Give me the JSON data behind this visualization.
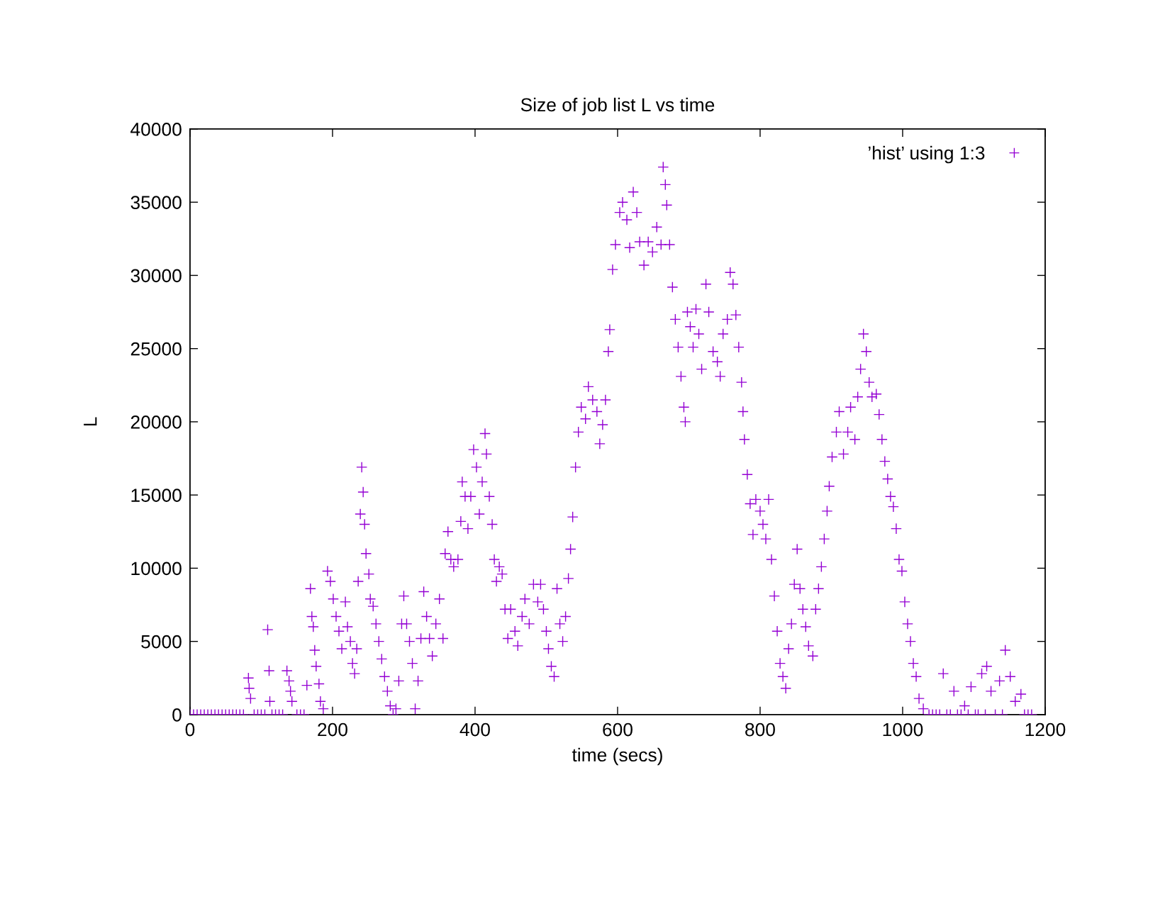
{
  "chart_data": {
    "type": "scatter",
    "title": "Size of job list L vs time",
    "xlabel": "time (secs)",
    "ylabel": "L",
    "xlim": [
      0,
      1200
    ],
    "ylim": [
      0,
      40000
    ],
    "xticks": [
      0,
      200,
      400,
      600,
      800,
      1000,
      1200
    ],
    "yticks": [
      0,
      5000,
      10000,
      15000,
      20000,
      25000,
      30000,
      35000,
      40000
    ],
    "grid": false,
    "legend": "top right",
    "marker": "cross",
    "series": [
      {
        "name": "’hist’ using 1:3",
        "color": "#9400d3",
        "x": [
          0,
          5,
          10,
          15,
          20,
          25,
          30,
          35,
          40,
          45,
          50,
          55,
          60,
          65,
          70,
          75,
          90,
          95,
          100,
          105,
          115,
          120,
          125,
          130,
          150,
          155,
          160,
          82,
          83,
          85,
          109,
          111,
          112,
          136,
          139,
          141,
          143,
          164,
          169,
          171,
          173,
          175,
          177,
          181,
          183,
          187,
          193,
          197,
          201,
          205,
          209,
          213,
          218,
          221,
          225,
          228,
          231,
          234,
          236,
          239,
          241,
          243,
          245,
          247,
          251,
          253,
          257,
          261,
          265,
          269,
          273,
          277,
          281,
          285,
          289,
          293,
          297,
          300,
          304,
          308,
          312,
          316,
          320,
          324,
          328,
          332,
          336,
          340,
          345,
          350,
          355,
          358,
          362,
          366,
          370,
          376,
          380,
          382,
          386,
          390,
          394,
          398,
          402,
          406,
          410,
          414,
          416,
          420,
          424,
          427,
          430,
          434,
          438,
          442,
          446,
          450,
          456,
          460,
          466,
          470,
          476,
          482,
          488,
          492,
          496,
          500,
          503,
          507,
          511,
          515,
          519,
          523,
          527,
          531,
          534,
          537,
          541,
          545,
          549,
          555,
          559,
          565,
          571,
          575,
          579,
          583,
          587,
          589,
          593,
          597,
          603,
          607,
          613,
          617,
          622,
          627,
          631,
          637,
          643,
          649,
          655,
          661,
          664,
          667,
          669,
          673,
          677,
          681,
          685,
          689,
          693,
          695,
          698,
          702,
          706,
          710,
          714,
          718,
          724,
          728,
          734,
          740,
          744,
          748,
          754,
          758,
          762,
          766,
          770,
          774,
          776,
          778,
          782,
          786,
          790,
          794,
          800,
          804,
          808,
          812,
          816,
          820,
          824,
          828,
          832,
          836,
          840,
          844,
          848,
          852,
          856,
          860,
          864,
          868,
          874,
          878,
          882,
          886,
          890,
          894,
          897,
          901,
          907,
          911,
          917,
          923,
          927,
          933,
          937,
          941,
          945,
          949,
          953,
          957,
          963,
          967,
          971,
          975,
          979,
          983,
          987,
          991,
          995,
          999,
          1003,
          1007,
          1011,
          1015,
          1019,
          1023,
          1029,
          1037,
          1042,
          1047,
          1052,
          1062,
          1067,
          1077,
          1082,
          1092,
          1102,
          1106,
          1116,
          1130,
          1140,
          1176,
          1181,
          1057,
          1072,
          1087,
          1096,
          1111,
          1118,
          1124,
          1136,
          1144,
          1151,
          1158,
          1166,
          1171
        ],
        "values": [
          0,
          0,
          0,
          0,
          0,
          0,
          0,
          0,
          0,
          0,
          0,
          0,
          0,
          0,
          0,
          0,
          0,
          0,
          0,
          0,
          0,
          0,
          0,
          0,
          0,
          0,
          0,
          2500,
          1800,
          1100,
          5800,
          3000,
          900,
          3000,
          2300,
          1600,
          900,
          2000,
          8600,
          6700,
          6000,
          4400,
          3300,
          2100,
          900,
          400,
          9800,
          9100,
          7900,
          6700,
          5700,
          4500,
          7700,
          6000,
          5000,
          3500,
          2800,
          4500,
          9100,
          13700,
          16900,
          15200,
          13000,
          11000,
          9600,
          7900,
          7400,
          6200,
          5000,
          3800,
          2600,
          1600,
          600,
          0,
          400,
          2300,
          6200,
          8100,
          6200,
          5000,
          3500,
          400,
          2300,
          5200,
          8400,
          6700,
          5200,
          4000,
          6200,
          7900,
          5200,
          11000,
          12500,
          10600,
          10100,
          10600,
          13200,
          15900,
          14900,
          12700,
          14900,
          18100,
          16900,
          13700,
          15900,
          19200,
          17800,
          14900,
          13000,
          10600,
          9100,
          10100,
          9600,
          7200,
          5200,
          7200,
          5700,
          4700,
          6700,
          7900,
          6200,
          8900,
          7700,
          8900,
          7200,
          5700,
          4500,
          3300,
          2600,
          8600,
          6200,
          5000,
          6700,
          9300,
          11300,
          13500,
          16900,
          19300,
          21000,
          20200,
          22400,
          21500,
          20700,
          18500,
          19800,
          21500,
          24800,
          26300,
          30400,
          32100,
          34300,
          35000,
          33800,
          31900,
          35700,
          34300,
          32300,
          30700,
          32300,
          31600,
          33300,
          32100,
          37400,
          36200,
          34800,
          32100,
          29200,
          27000,
          25100,
          23100,
          21000,
          20000,
          27500,
          26500,
          25100,
          27700,
          26000,
          23600,
          29400,
          27500,
          24800,
          24100,
          23100,
          26000,
          27000,
          30200,
          29400,
          27300,
          25100,
          22700,
          20700,
          18800,
          16400,
          14400,
          12300,
          14700,
          13900,
          13000,
          12000,
          14700,
          10600,
          8100,
          5700,
          3500,
          2600,
          1800,
          4500,
          6200,
          8900,
          11300,
          8600,
          7200,
          6000,
          4700,
          4000,
          7200,
          8600,
          10100,
          12000,
          13900,
          15600,
          17600,
          19300,
          20700,
          17800,
          19300,
          21000,
          18800,
          21700,
          23600,
          26000,
          24800,
          22700,
          21700,
          21900,
          20500,
          18800,
          17300,
          16100,
          14900,
          14200,
          12700,
          10600,
          9800,
          7700,
          6200,
          5000,
          3500,
          2600,
          1100,
          400,
          0,
          0,
          0,
          0,
          0,
          0,
          0,
          0,
          0,
          0,
          0,
          0,
          0,
          0,
          0,
          0,
          2800,
          1600,
          600,
          1900,
          2800,
          3300,
          1600,
          2300,
          4400,
          2600,
          900,
          1400,
          0
        ]
      }
    ]
  }
}
